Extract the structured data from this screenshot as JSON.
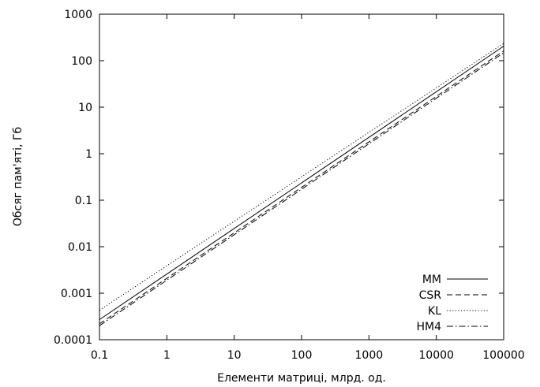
{
  "chart_data": {
    "type": "line",
    "title": "",
    "xlabel": "Елементи матриці, млрд. од.",
    "ylabel": "Обсяг пам'яті, Гб",
    "x_scale": "log",
    "y_scale": "log",
    "xlim": [
      0.1,
      100000
    ],
    "ylim": [
      0.0001,
      1000
    ],
    "x_ticks": [
      "0.1",
      "1",
      "10",
      "100",
      "1000",
      "10000",
      "100000"
    ],
    "y_ticks": [
      "0.0001",
      "0.001",
      "0.01",
      "0.1",
      "1",
      "10",
      "100",
      "1000"
    ],
    "grid": false,
    "legend_position": "bottom-right",
    "series": [
      {
        "name": "MM",
        "style": "solid",
        "x": [
          0.1,
          100000
        ],
        "y": [
          0.00027,
          205
        ]
      },
      {
        "name": "CSR",
        "style": "dashed",
        "x": [
          0.1,
          100000
        ],
        "y": [
          0.00022,
          162
        ]
      },
      {
        "name": "KL",
        "style": "dotted",
        "x": [
          0.1,
          100000
        ],
        "y": [
          0.00043,
          235
        ]
      },
      {
        "name": "HM4",
        "style": "dashdot",
        "x": [
          0.1,
          100000
        ],
        "y": [
          0.0002,
          148
        ]
      }
    ]
  }
}
